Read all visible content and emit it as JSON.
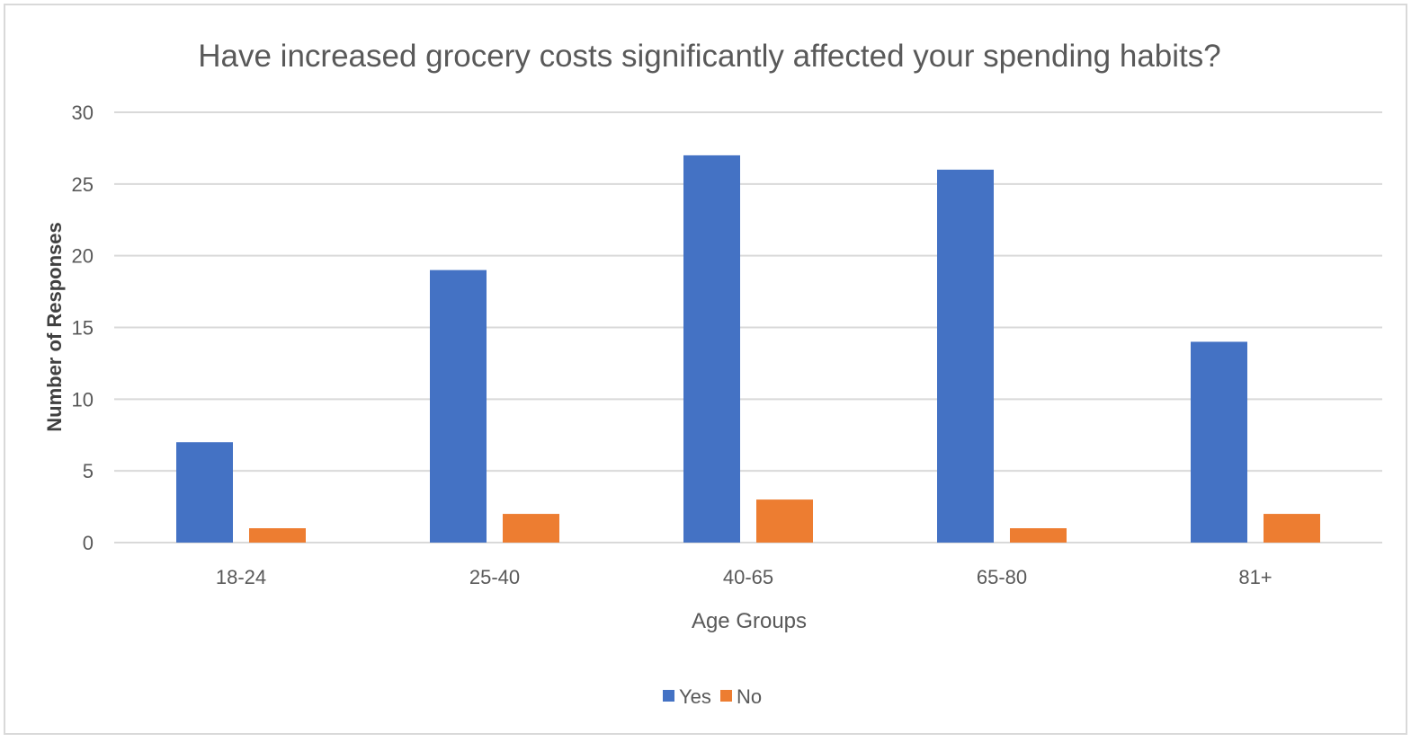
{
  "chart_data": {
    "type": "bar",
    "title": "Have increased grocery costs significantly affected your spending habits?",
    "xlabel": "Age Groups",
    "ylabel": "Number of Responses",
    "categories": [
      "18-24",
      "25-40",
      "40-65",
      "65-80",
      "81+"
    ],
    "series": [
      {
        "name": "Yes",
        "values": [
          7,
          19,
          27,
          26,
          14
        ],
        "color": "#4472C4"
      },
      {
        "name": "No",
        "values": [
          1,
          2,
          3,
          1,
          2
        ],
        "color": "#ED7D31"
      }
    ],
    "ylim": [
      0,
      30
    ],
    "yticks": [
      0,
      5,
      10,
      15,
      20,
      25,
      30
    ],
    "grid": true,
    "legend": "bottom-center"
  }
}
